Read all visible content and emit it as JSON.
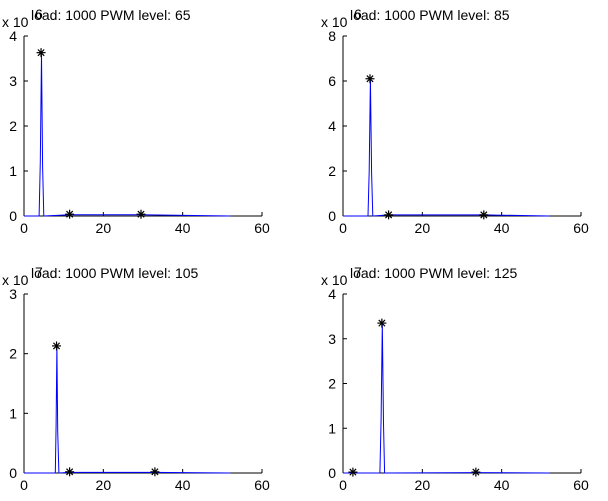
{
  "figure": {
    "background": "#ffffff",
    "line_color": "#0000ff",
    "marker_color": "#000000"
  },
  "chart_data": [
    {
      "type": "line",
      "title": "load: 1000 PWM level: 65",
      "xlim": [
        0,
        60
      ],
      "ylim": [
        0,
        4
      ],
      "xticks": [
        0,
        20,
        40,
        60
      ],
      "yticks": [
        0,
        1,
        2,
        3,
        4
      ],
      "y_multiplier_label": "x 10",
      "y_multiplier_exponent": "6",
      "series": [
        {
          "x": [
            0,
            3.8,
            4.1,
            4.4,
            4.7,
            5.0,
            11.5,
            29.5,
            52
          ],
          "y": [
            0.0,
            0.0,
            1.2,
            3.6,
            1.1,
            0.0,
            0.03,
            0.03,
            0.0
          ]
        }
      ],
      "markers": [
        {
          "x": 4.3,
          "y": 3.63
        },
        {
          "x": 11.5,
          "y": 0.04
        },
        {
          "x": 29.5,
          "y": 0.04
        }
      ]
    },
    {
      "type": "line",
      "title": "load: 1000 PWM level: 85",
      "xlim": [
        0,
        60
      ],
      "ylim": [
        0,
        8
      ],
      "xticks": [
        0,
        20,
        40,
        60
      ],
      "yticks": [
        0,
        2,
        4,
        6,
        8
      ],
      "y_multiplier_label": "x 10",
      "y_multiplier_exponent": "6",
      "series": [
        {
          "x": [
            0,
            6.3,
            6.6,
            6.9,
            7.2,
            7.5,
            11.5,
            35.5,
            52
          ],
          "y": [
            0.0,
            0.0,
            2.0,
            6.1,
            1.9,
            0.0,
            0.05,
            0.05,
            0.0
          ]
        }
      ],
      "markers": [
        {
          "x": 6.8,
          "y": 6.1
        },
        {
          "x": 11.5,
          "y": 0.05
        },
        {
          "x": 35.5,
          "y": 0.05
        }
      ]
    },
    {
      "type": "line",
      "title": "load: 1000 PWM level: 105",
      "xlim": [
        0,
        60
      ],
      "ylim": [
        0,
        3
      ],
      "xticks": [
        0,
        20,
        40,
        60
      ],
      "yticks": [
        0,
        1,
        2,
        3
      ],
      "y_multiplier_label": "x 10",
      "y_multiplier_exponent": "7",
      "series": [
        {
          "x": [
            0,
            7.9,
            8.1,
            8.3,
            8.5,
            8.8,
            11.5,
            33,
            52
          ],
          "y": [
            0.0,
            0.0,
            0.8,
            2.13,
            0.7,
            0.0,
            0.01,
            0.01,
            0.0
          ]
        }
      ],
      "markers": [
        {
          "x": 8.2,
          "y": 2.13
        },
        {
          "x": 11.5,
          "y": 0.02
        },
        {
          "x": 33,
          "y": 0.02
        }
      ]
    },
    {
      "type": "line",
      "title": "load: 1000 PWM level: 125",
      "xlim": [
        0,
        60
      ],
      "ylim": [
        0,
        4
      ],
      "xticks": [
        0,
        20,
        40,
        60
      ],
      "yticks": [
        0,
        1,
        2,
        3,
        4
      ],
      "y_multiplier_label": "x 10",
      "y_multiplier_exponent": "7",
      "series": [
        {
          "x": [
            0,
            9.3,
            9.6,
            9.9,
            10.2,
            10.5,
            33.5,
            52
          ],
          "y": [
            0.0,
            0.0,
            1.2,
            3.35,
            1.1,
            0.0,
            0.01,
            0.0
          ]
        }
      ],
      "markers": [
        {
          "x": 2.5,
          "y": 0.02
        },
        {
          "x": 9.8,
          "y": 3.35
        },
        {
          "x": 33.5,
          "y": 0.02
        }
      ]
    }
  ]
}
